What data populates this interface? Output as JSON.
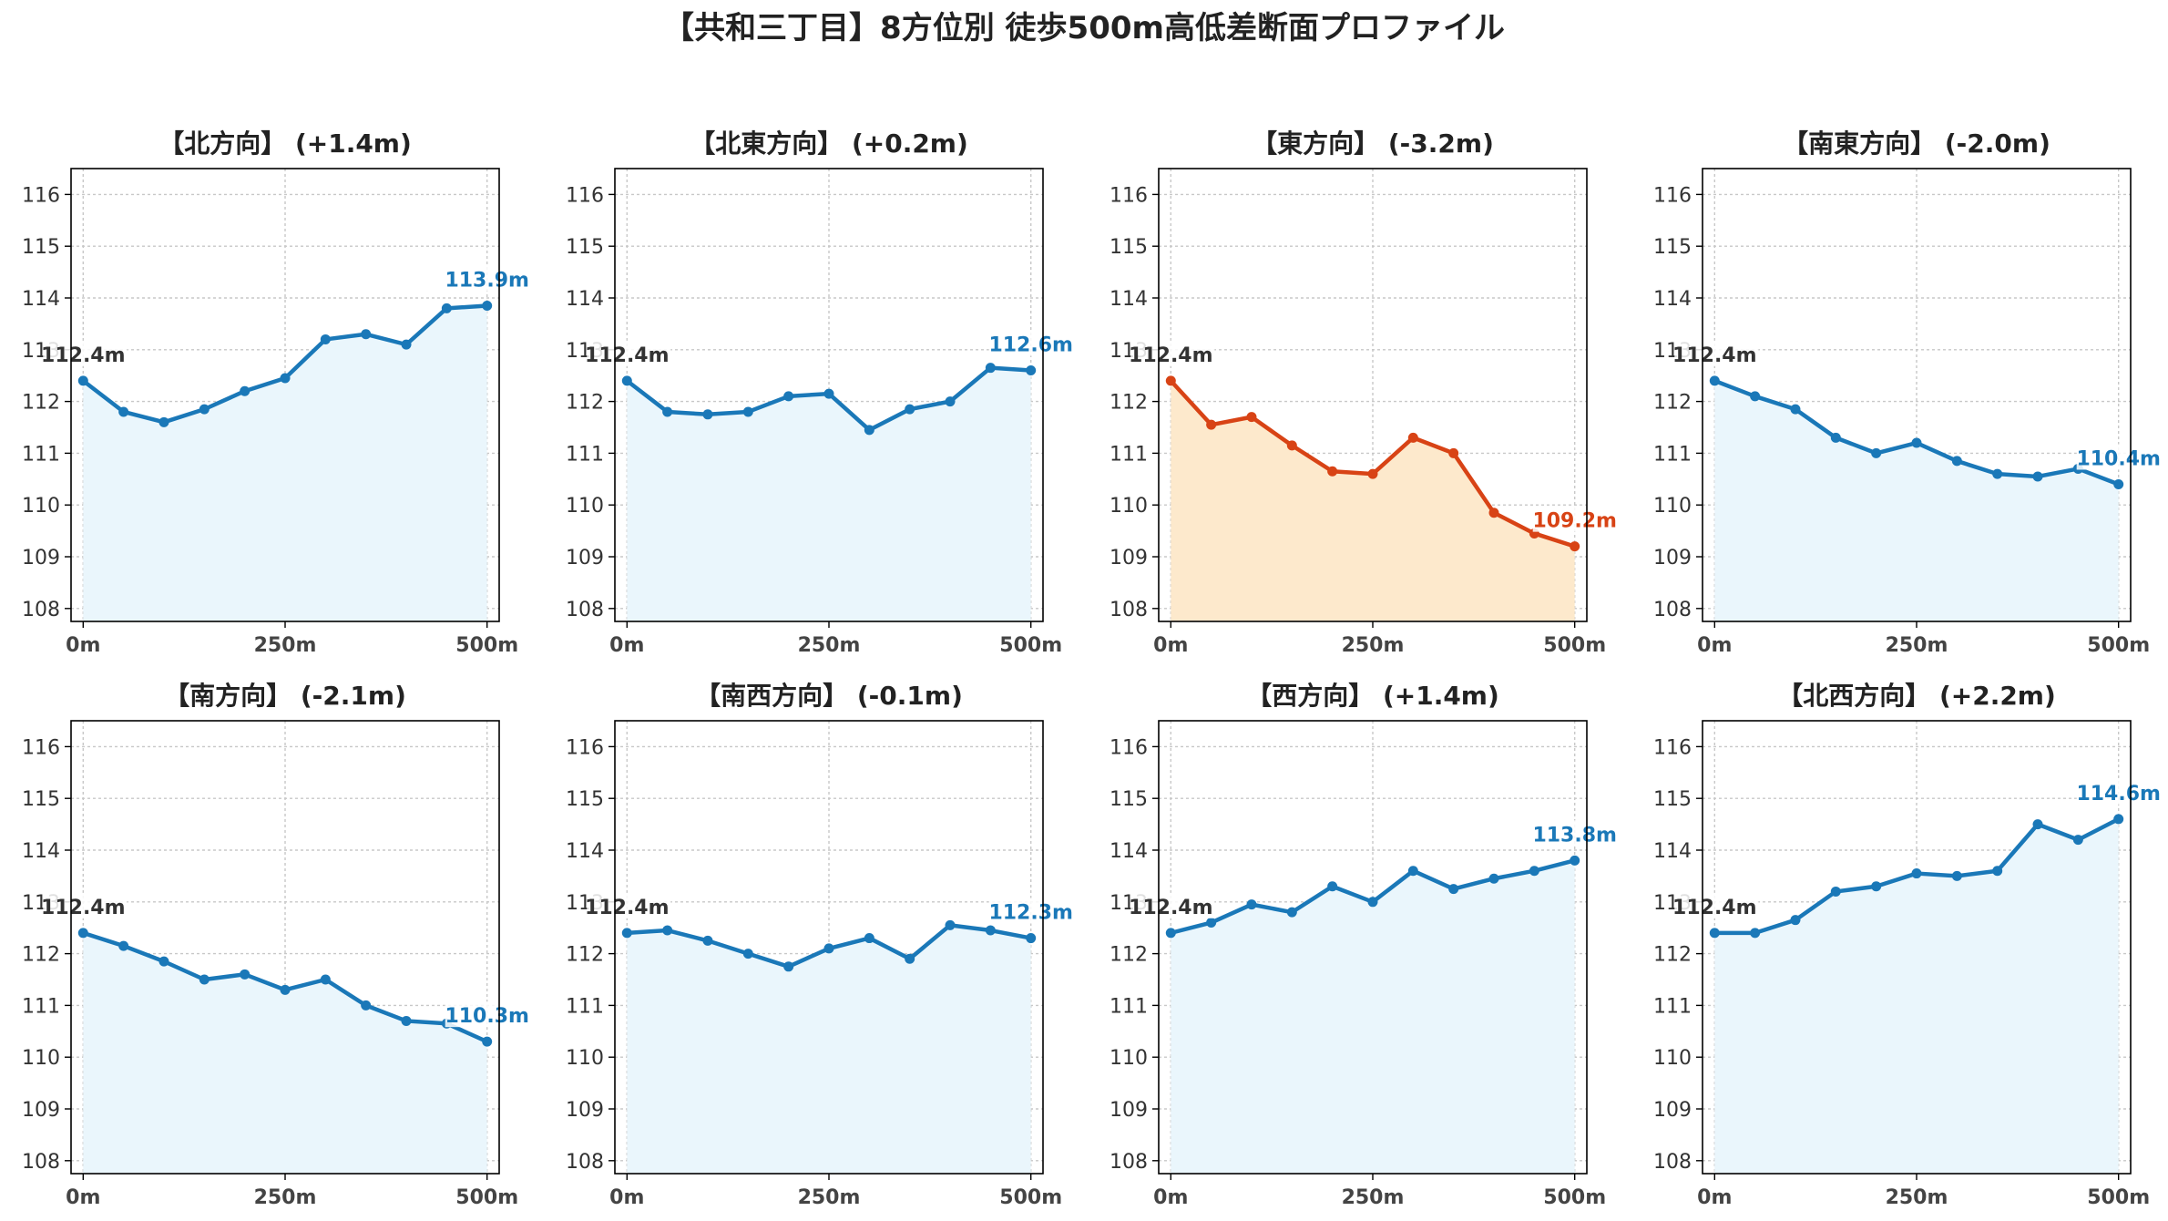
{
  "page": {
    "title": "【共和三丁目】8方位別 徒歩500m高低差断面プロファイル"
  },
  "colors": {
    "normal_line": "#1a78b8",
    "normal_fill": "#eaf6fc",
    "highlight_line": "#d84315",
    "highlight_fill": "#fde9cc",
    "start_label": "#333333"
  },
  "chart_data": [
    {
      "type": "line",
      "title": "【北方向】 (+1.4m)",
      "highlight": false,
      "x": [
        0,
        50,
        100,
        150,
        200,
        250,
        300,
        350,
        400,
        450,
        500
      ],
      "y": [
        112.4,
        111.8,
        111.6,
        111.85,
        112.2,
        112.45,
        113.2,
        113.3,
        113.1,
        113.8,
        113.85
      ],
      "ylim": [
        107.75,
        116.5
      ],
      "yticks": [
        108,
        109,
        110,
        111,
        112,
        113,
        114,
        115,
        116
      ],
      "ytick_labels": [
        "108",
        "109",
        "110",
        "111",
        "112",
        "113",
        "114",
        "115",
        "116"
      ],
      "xlim": [
        -15,
        515
      ],
      "xticks": [
        0,
        250,
        500
      ],
      "xtick_labels": [
        "0m",
        "250m",
        "500m"
      ],
      "start_label": "112.4m",
      "end_label": "113.9m",
      "grid": true
    },
    {
      "type": "line",
      "title": "【北東方向】 (+0.2m)",
      "highlight": false,
      "x": [
        0,
        50,
        100,
        150,
        200,
        250,
        300,
        350,
        400,
        450,
        500
      ],
      "y": [
        112.4,
        111.8,
        111.75,
        111.8,
        112.1,
        112.15,
        111.45,
        111.85,
        112.0,
        112.65,
        112.6
      ],
      "ylim": [
        107.75,
        116.5
      ],
      "yticks": [
        108,
        109,
        110,
        111,
        112,
        113,
        114,
        115,
        116
      ],
      "ytick_labels": [
        "108",
        "109",
        "110",
        "111",
        "112",
        "113",
        "114",
        "115",
        "116"
      ],
      "xlim": [
        -15,
        515
      ],
      "xticks": [
        0,
        250,
        500
      ],
      "xtick_labels": [
        "0m",
        "250m",
        "500m"
      ],
      "start_label": "112.4m",
      "end_label": "112.6m",
      "grid": true
    },
    {
      "type": "line",
      "title": "【東方向】 (-3.2m)",
      "highlight": true,
      "x": [
        0,
        50,
        100,
        150,
        200,
        250,
        300,
        350,
        400,
        450,
        500
      ],
      "y": [
        112.4,
        111.55,
        111.7,
        111.15,
        110.65,
        110.6,
        111.3,
        111.0,
        109.85,
        109.45,
        109.2
      ],
      "ylim": [
        107.75,
        116.5
      ],
      "yticks": [
        108,
        109,
        110,
        111,
        112,
        113,
        114,
        115,
        116
      ],
      "ytick_labels": [
        "108",
        "109",
        "110",
        "111",
        "112",
        "113",
        "114",
        "115",
        "116"
      ],
      "xlim": [
        -15,
        515
      ],
      "xticks": [
        0,
        250,
        500
      ],
      "xtick_labels": [
        "0m",
        "250m",
        "500m"
      ],
      "start_label": "112.4m",
      "end_label": "109.2m",
      "grid": true
    },
    {
      "type": "line",
      "title": "【南東方向】 (-2.0m)",
      "highlight": false,
      "x": [
        0,
        50,
        100,
        150,
        200,
        250,
        300,
        350,
        400,
        450,
        500
      ],
      "y": [
        112.4,
        112.1,
        111.85,
        111.3,
        111.0,
        111.2,
        110.85,
        110.6,
        110.55,
        110.7,
        110.4
      ],
      "ylim": [
        107.75,
        116.5
      ],
      "yticks": [
        108,
        109,
        110,
        111,
        112,
        113,
        114,
        115,
        116
      ],
      "ytick_labels": [
        "108",
        "109",
        "110",
        "111",
        "112",
        "113",
        "114",
        "115",
        "116"
      ],
      "xlim": [
        -15,
        515
      ],
      "xticks": [
        0,
        250,
        500
      ],
      "xtick_labels": [
        "0m",
        "250m",
        "500m"
      ],
      "start_label": "112.4m",
      "end_label": "110.4m",
      "grid": true
    },
    {
      "type": "line",
      "title": "【南方向】 (-2.1m)",
      "highlight": false,
      "x": [
        0,
        50,
        100,
        150,
        200,
        250,
        300,
        350,
        400,
        450,
        500
      ],
      "y": [
        112.4,
        112.15,
        111.85,
        111.5,
        111.6,
        111.3,
        111.5,
        111.0,
        110.7,
        110.65,
        110.3
      ],
      "ylim": [
        107.75,
        116.5
      ],
      "yticks": [
        108,
        109,
        110,
        111,
        112,
        113,
        114,
        115,
        116
      ],
      "ytick_labels": [
        "108",
        "109",
        "110",
        "111",
        "112",
        "113",
        "114",
        "115",
        "116"
      ],
      "xlim": [
        -15,
        515
      ],
      "xticks": [
        0,
        250,
        500
      ],
      "xtick_labels": [
        "0m",
        "250m",
        "500m"
      ],
      "start_label": "112.4m",
      "end_label": "110.3m",
      "grid": true
    },
    {
      "type": "line",
      "title": "【南西方向】 (-0.1m)",
      "highlight": false,
      "x": [
        0,
        50,
        100,
        150,
        200,
        250,
        300,
        350,
        400,
        450,
        500
      ],
      "y": [
        112.4,
        112.45,
        112.25,
        112.0,
        111.75,
        112.1,
        112.3,
        111.9,
        112.55,
        112.45,
        112.3
      ],
      "ylim": [
        107.75,
        116.5
      ],
      "yticks": [
        108,
        109,
        110,
        111,
        112,
        113,
        114,
        115,
        116
      ],
      "ytick_labels": [
        "108",
        "109",
        "110",
        "111",
        "112",
        "113",
        "114",
        "115",
        "116"
      ],
      "xlim": [
        -15,
        515
      ],
      "xticks": [
        0,
        250,
        500
      ],
      "xtick_labels": [
        "0m",
        "250m",
        "500m"
      ],
      "start_label": "112.4m",
      "end_label": "112.3m",
      "grid": true
    },
    {
      "type": "line",
      "title": "【西方向】 (+1.4m)",
      "highlight": false,
      "x": [
        0,
        50,
        100,
        150,
        200,
        250,
        300,
        350,
        400,
        450,
        500
      ],
      "y": [
        112.4,
        112.6,
        112.95,
        112.8,
        113.3,
        113.0,
        113.6,
        113.25,
        113.45,
        113.6,
        113.8
      ],
      "ylim": [
        107.75,
        116.5
      ],
      "yticks": [
        108,
        109,
        110,
        111,
        112,
        113,
        114,
        115,
        116
      ],
      "ytick_labels": [
        "108",
        "109",
        "110",
        "111",
        "112",
        "113",
        "114",
        "115",
        "116"
      ],
      "xlim": [
        -15,
        515
      ],
      "xticks": [
        0,
        250,
        500
      ],
      "xtick_labels": [
        "0m",
        "250m",
        "500m"
      ],
      "start_label": "112.4m",
      "end_label": "113.8m",
      "grid": true
    },
    {
      "type": "line",
      "title": "【北西方向】 (+2.2m)",
      "highlight": false,
      "x": [
        0,
        50,
        100,
        150,
        200,
        250,
        300,
        350,
        400,
        450,
        500
      ],
      "y": [
        112.4,
        112.4,
        112.65,
        113.2,
        113.3,
        113.55,
        113.5,
        113.6,
        114.5,
        114.2,
        114.6
      ],
      "ylim": [
        107.75,
        116.5
      ],
      "yticks": [
        108,
        109,
        110,
        111,
        112,
        113,
        114,
        115,
        116
      ],
      "ytick_labels": [
        "108",
        "109",
        "110",
        "111",
        "112",
        "113",
        "114",
        "115",
        "116"
      ],
      "xlim": [
        -15,
        515
      ],
      "xticks": [
        0,
        250,
        500
      ],
      "xtick_labels": [
        "0m",
        "250m",
        "500m"
      ],
      "start_label": "112.4m",
      "end_label": "114.6m",
      "grid": true
    }
  ]
}
